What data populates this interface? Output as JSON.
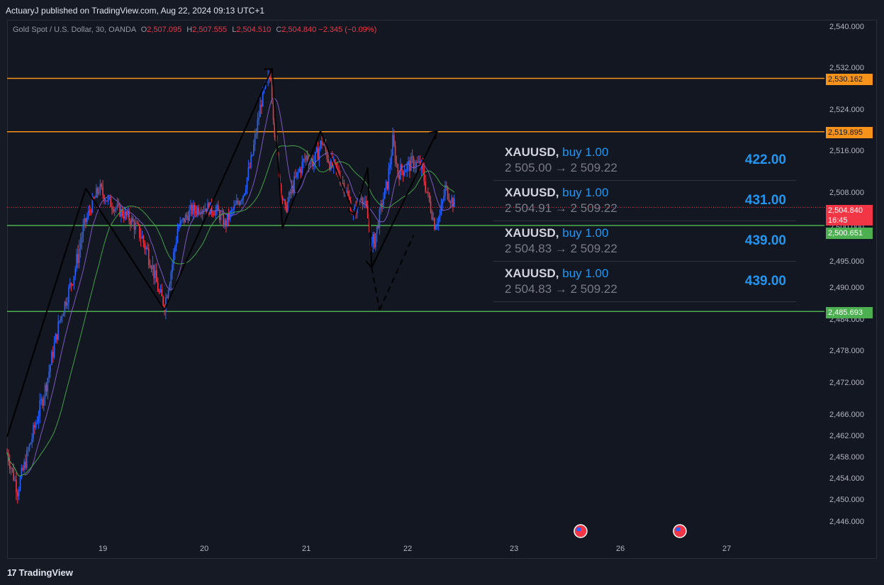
{
  "publisher": "ActuaryJ published on TradingView.com, Aug 22, 2024 09:13 UTC+1",
  "legend": {
    "symbol": "Gold Spot / U.S. Dollar, 30, OANDA",
    "o_label": "O",
    "o": "2,507.095",
    "h_label": "H",
    "h": "2,507.555",
    "l_label": "L",
    "l": "2,504.510",
    "c_label": "C",
    "c": "2,504.840",
    "chg": "−2.345 (−0.09%)"
  },
  "price_labels": {
    "res_top": "2,530.162",
    "res_mid": "2,519.895",
    "current": "2,504.840",
    "countdown": "16:45",
    "sup_top": "2,500.651",
    "sup_low": "2,485.693"
  },
  "trades": [
    {
      "symbol": "XAUUSD,",
      "side": "buy 1.00",
      "route": "2 505.00 → 2 509.22",
      "points": "422.00"
    },
    {
      "symbol": "XAUUSD,",
      "side": "buy 1.00",
      "route": "2 504.91 → 2 509.22",
      "points": "431.00"
    },
    {
      "symbol": "XAUUSD,",
      "side": "buy 1.00",
      "route": "2 504.83 → 2 509.22",
      "points": "439.00"
    },
    {
      "symbol": "XAUUSD,",
      "side": "buy 1.00",
      "route": "2 504.83 → 2 509.22",
      "points": "439.00"
    }
  ],
  "brand": "TradingView",
  "colors": {
    "up": "#2962ff",
    "down": "#f23645",
    "resistance": "#f7931a",
    "support": "#4caf50",
    "ma_purple": "#7e57c2",
    "ma_green": "#43a047"
  },
  "chart_data": {
    "type": "candlestick",
    "title": "Gold Spot / U.S. Dollar, 30, OANDA",
    "y_ticks": [
      "2,540.000",
      "2,532.000",
      "2,524.000",
      "2,516.000",
      "2,508.000",
      "2,500.000",
      "2,495.000",
      "2,490.000",
      "2,484.000",
      "2,478.000",
      "2,472.000",
      "2,466.000",
      "2,462.000",
      "2,458.000",
      "2,454.000",
      "2,450.000",
      "2,446.000"
    ],
    "x_ticks": [
      "19",
      "20",
      "21",
      "22",
      "23",
      "26",
      "27"
    ],
    "horizontal_levels": [
      {
        "value": 2530.162,
        "kind": "resistance"
      },
      {
        "value": 2519.895,
        "kind": "resistance"
      },
      {
        "value": 2500.651,
        "kind": "support"
      },
      {
        "value": 2485.693,
        "kind": "support"
      }
    ],
    "current_price": 2504.84,
    "price_path": [
      [
        0,
        2459
      ],
      [
        8,
        2452
      ],
      [
        18,
        2461
      ],
      [
        30,
        2472
      ],
      [
        40,
        2484
      ],
      [
        50,
        2492
      ],
      [
        58,
        2500
      ],
      [
        64,
        2505
      ],
      [
        70,
        2509
      ],
      [
        78,
        2506
      ],
      [
        86,
        2504
      ],
      [
        94,
        2502
      ],
      [
        102,
        2499
      ],
      [
        110,
        2495
      ],
      [
        116,
        2489
      ],
      [
        120,
        2487
      ],
      [
        124,
        2492
      ],
      [
        130,
        2500
      ],
      [
        140,
        2504
      ],
      [
        150,
        2505
      ],
      [
        160,
        2504
      ],
      [
        166,
        2501
      ],
      [
        172,
        2504
      ],
      [
        180,
        2508
      ],
      [
        186,
        2514
      ],
      [
        190,
        2520
      ],
      [
        194,
        2526
      ],
      [
        198,
        2529
      ],
      [
        201,
        2531
      ],
      [
        204,
        2520
      ],
      [
        208,
        2510
      ],
      [
        212,
        2504
      ],
      [
        216,
        2508
      ],
      [
        222,
        2512
      ],
      [
        228,
        2515
      ],
      [
        234,
        2514
      ],
      [
        240,
        2518
      ],
      [
        246,
        2514
      ],
      [
        252,
        2512
      ],
      [
        258,
        2509
      ],
      [
        264,
        2503
      ],
      [
        270,
        2508
      ],
      [
        274,
        2504
      ],
      [
        278,
        2497
      ],
      [
        282,
        2500
      ],
      [
        286,
        2506
      ],
      [
        290,
        2510
      ],
      [
        294,
        2518
      ],
      [
        298,
        2512
      ],
      [
        304,
        2513
      ],
      [
        310,
        2514
      ],
      [
        316,
        2513
      ],
      [
        322,
        2506
      ],
      [
        326,
        2501
      ],
      [
        330,
        2503
      ],
      [
        334,
        2509
      ],
      [
        338,
        2507
      ],
      [
        342,
        2505
      ]
    ],
    "pattern_lines": [
      [
        [
          0,
          2462
        ],
        [
          60,
          2509
        ]
      ],
      [
        [
          60,
          2509
        ],
        [
          120,
          2486
        ]
      ],
      [
        [
          120,
          2486
        ],
        [
          202,
          2532
        ]
      ],
      [
        [
          202,
          2532
        ],
        [
          210,
          2500
        ]
      ],
      [
        [
          210,
          2500
        ],
        [
          239,
          2520
        ]
      ],
      [
        [
          239,
          2520
        ],
        [
          265,
          2503
        ]
      ],
      [
        [
          265,
          2503
        ],
        [
          275,
          2513
        ]
      ],
      [
        [
          275,
          2513
        ],
        [
          278,
          2494
        ]
      ],
      [
        [
          278,
          2494
        ],
        [
          328,
          2520
        ]
      ]
    ],
    "projection_lines": [
      [
        [
          278,
          2494
        ],
        [
          284,
          2486
        ]
      ],
      [
        [
          284,
          2486
        ],
        [
          310,
          2499
        ]
      ]
    ]
  }
}
